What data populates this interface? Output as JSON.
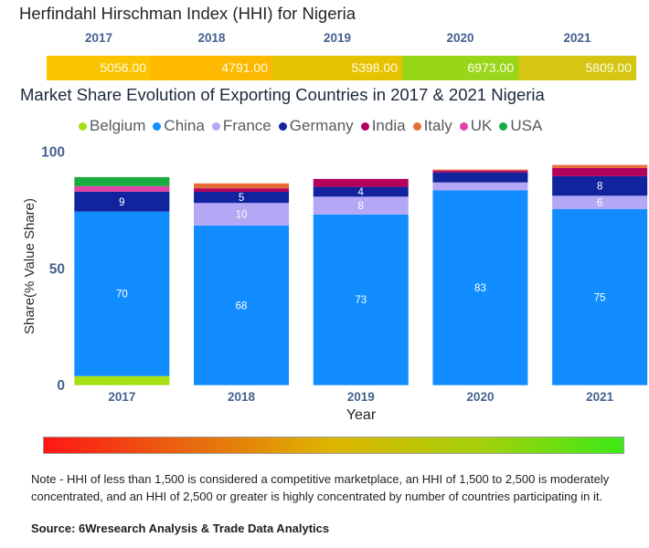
{
  "hhi": {
    "title": "Herfindahl Hirschman Index (HHI) for Nigeria",
    "years": [
      {
        "year": "2017",
        "value": "5056.00",
        "color": "#FAC400"
      },
      {
        "year": "2018",
        "value": "4791.00",
        "color": "#FCB900"
      },
      {
        "year": "2019",
        "value": "5398.00",
        "color": "#E6C300"
      },
      {
        "year": "2020",
        "value": "6973.00",
        "color": "#98D61A"
      },
      {
        "year": "2021",
        "value": "5809.00",
        "color": "#D4C612"
      }
    ]
  },
  "chart_data": {
    "type": "bar",
    "stacked": true,
    "title": "Market Share Evolution of Exporting Countries in 2017 & 2021 Nigeria",
    "xlabel": "Year",
    "ylabel": "Share(% Value Share)",
    "categories": [
      "2017",
      "2018",
      "2019",
      "2020",
      "2021"
    ],
    "ylim": [
      0,
      100
    ],
    "yticks": [
      0,
      50,
      100
    ],
    "grid": false,
    "legend_position": "top-center",
    "series": [
      {
        "name": "Belgium",
        "color": "#A4E012",
        "values": [
          3.9,
          0,
          0,
          0,
          0
        ],
        "labels": [
          null,
          null,
          null,
          null,
          null
        ]
      },
      {
        "name": "China",
        "color": "#118DFF",
        "values": [
          70.4,
          68.4,
          73.1,
          83.4,
          75.4
        ],
        "labels": [
          "70",
          "68",
          "73",
          "83",
          "75"
        ]
      },
      {
        "name": "France",
        "color": "#B4A7F6",
        "values": [
          0,
          9.6,
          7.6,
          3.4,
          5.7
        ],
        "labels": [
          null,
          "10",
          "8",
          null,
          "6"
        ]
      },
      {
        "name": "Germany",
        "color": "#12239E",
        "values": [
          8.5,
          4.8,
          4.2,
          4.3,
          8.4
        ],
        "labels": [
          "9",
          "5",
          "4",
          null,
          "8"
        ]
      },
      {
        "name": "India",
        "color": "#B3005B",
        "values": [
          0,
          1.5,
          3.4,
          0.8,
          3.5
        ],
        "labels": [
          null,
          null,
          null,
          null,
          null
        ]
      },
      {
        "name": "Italy",
        "color": "#E66C37",
        "values": [
          0,
          2.1,
          0,
          0.4,
          1.3
        ],
        "labels": [
          null,
          null,
          null,
          null,
          null
        ]
      },
      {
        "name": "UK",
        "color": "#E044A7",
        "values": [
          2.4,
          0,
          0,
          0,
          0
        ],
        "labels": [
          null,
          null,
          null,
          null,
          null
        ]
      },
      {
        "name": "USA",
        "color": "#1AAB40",
        "values": [
          3.9,
          0,
          0,
          0,
          0
        ],
        "labels": [
          null,
          null,
          null,
          null,
          null
        ]
      }
    ]
  },
  "scale": {
    "colors": [
      "#FF1616",
      "#E8680F",
      "#DDB600",
      "#A6D00A",
      "#3DE917"
    ]
  },
  "note": "Note - HHI of less than 1,500 is considered a competitive marketplace, an HHI of 1,500 to 2,500 is moderately concentrated, and an HHI of 2,500 or greater is highly concentrated by number of countries participating in it.",
  "source": "Source: 6Wresearch Analysis & Trade Data Analytics"
}
